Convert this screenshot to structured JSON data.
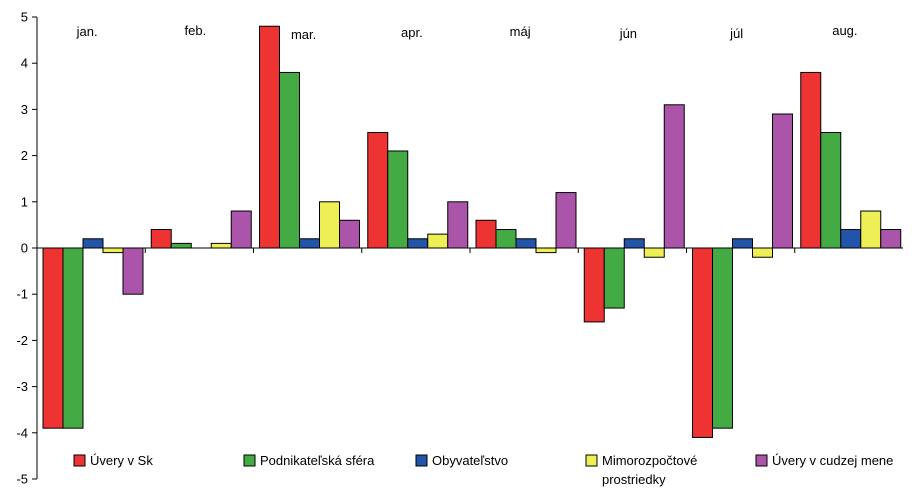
{
  "chart_data": {
    "type": "bar",
    "title": "",
    "xlabel": "",
    "ylabel": "",
    "ylim": [
      -5,
      5
    ],
    "yticks": [
      5,
      4,
      3,
      2,
      1,
      0,
      -1,
      -2,
      -3,
      -4,
      -5
    ],
    "grid": false,
    "legend_position": "bottom",
    "categories": [
      "jan.",
      "feb.",
      "mar.",
      "apr.",
      "máj",
      "jún",
      "júl",
      "aug."
    ],
    "series": [
      {
        "name": "Úvery v Sk",
        "color": "#ee3333",
        "values": [
          -3.9,
          0.4,
          4.8,
          2.5,
          0.6,
          -1.6,
          -4.1,
          3.8
        ]
      },
      {
        "name": "Podnikateľská sféra",
        "color": "#44aa44",
        "values": [
          -3.9,
          0.1,
          3.8,
          2.1,
          0.4,
          -1.3,
          -3.9,
          2.5
        ]
      },
      {
        "name": "Obyvateľstvo",
        "color": "#2255aa",
        "values": [
          0.2,
          0.0,
          0.2,
          0.2,
          0.2,
          0.2,
          0.2,
          0.4
        ]
      },
      {
        "name": "Mimorozpočtové prostriedky",
        "name_lines": [
          "Mimorozpočtové",
          "prostriedky"
        ],
        "color": "#eeee55",
        "values": [
          -0.1,
          0.1,
          1.0,
          0.3,
          -0.1,
          -0.2,
          -0.2,
          0.8
        ]
      },
      {
        "name": "Úvery v cudzej mene",
        "color": "#aa55aa",
        "values": [
          -1.0,
          0.8,
          0.6,
          1.0,
          1.2,
          3.1,
          2.9,
          0.4
        ]
      }
    ]
  }
}
